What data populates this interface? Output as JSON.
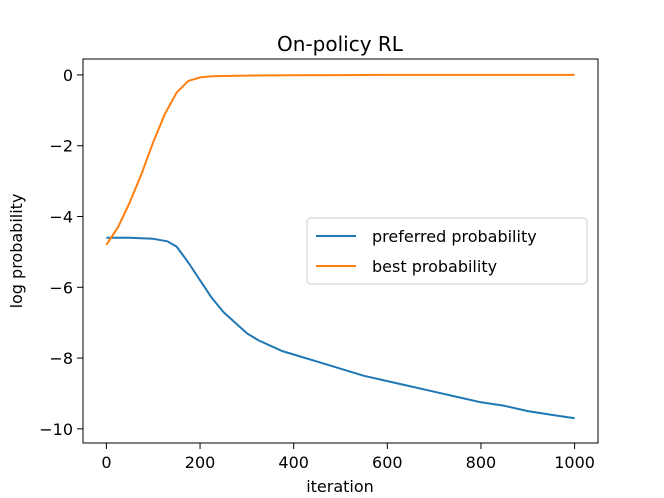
{
  "chart_data": {
    "type": "line",
    "title": "On-policy RL",
    "xlabel": "iteration",
    "ylabel": "log probability",
    "xlim": [
      -50,
      1050
    ],
    "ylim": [
      -10.4,
      0.45
    ],
    "xticks": [
      0,
      200,
      400,
      600,
      800,
      1000
    ],
    "xtick_labels": [
      "0",
      "200",
      "400",
      "600",
      "800",
      "1000"
    ],
    "yticks": [
      0,
      -2,
      -4,
      -6,
      -8,
      -10
    ],
    "ytick_labels": [
      "0",
      "−2",
      "−4",
      "−6",
      "−8",
      "−10"
    ],
    "grid": false,
    "legend_position": "center-right",
    "series": [
      {
        "name": "preferred probability",
        "color": "#1f77b4",
        "x": [
          0,
          50,
          100,
          130,
          150,
          175,
          200,
          225,
          250,
          275,
          300,
          325,
          350,
          375,
          400,
          450,
          500,
          550,
          600,
          650,
          700,
          750,
          800,
          850,
          900,
          950,
          1000
        ],
        "y": [
          -4.6,
          -4.6,
          -4.63,
          -4.7,
          -4.85,
          -5.3,
          -5.8,
          -6.3,
          -6.7,
          -7.0,
          -7.3,
          -7.5,
          -7.65,
          -7.8,
          -7.9,
          -8.1,
          -8.3,
          -8.5,
          -8.65,
          -8.8,
          -8.95,
          -9.1,
          -9.25,
          -9.35,
          -9.5,
          -9.6,
          -9.7
        ]
      },
      {
        "name": "best probability",
        "color": "#ff7f0e",
        "x": [
          0,
          25,
          50,
          75,
          100,
          125,
          150,
          175,
          200,
          225,
          250,
          300,
          400,
          500,
          600,
          700,
          800,
          900,
          1000
        ],
        "y": [
          -4.8,
          -4.3,
          -3.6,
          -2.8,
          -1.9,
          -1.1,
          -0.5,
          -0.17,
          -0.07,
          -0.04,
          -0.03,
          -0.02,
          -0.01,
          -0.005,
          0,
          0,
          0,
          0,
          0
        ]
      }
    ]
  }
}
